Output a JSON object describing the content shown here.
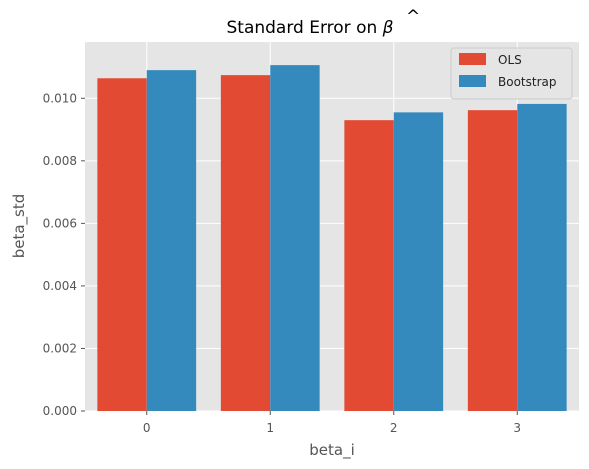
{
  "chart_data": {
    "type": "bar",
    "title_prefix": "Standard Error on ",
    "title_symbol": "β",
    "title_hat": "^",
    "xlabel": "beta_i",
    "ylabel": "beta_std",
    "categories": [
      "0",
      "1",
      "2",
      "3"
    ],
    "series": [
      {
        "name": "OLS",
        "color": "#E24A33",
        "values": [
          0.01064,
          0.01074,
          0.0093,
          0.00962
        ]
      },
      {
        "name": "Bootstrap",
        "color": "#348ABD",
        "values": [
          0.0109,
          0.01106,
          0.00955,
          0.00982
        ]
      }
    ],
    "ylim": [
      0,
      0.0118
    ],
    "yticks": [
      "0.000",
      "0.002",
      "0.004",
      "0.006",
      "0.008",
      "0.010"
    ],
    "grid": true,
    "legend_position": "top-right",
    "background": "#E5E5E5"
  }
}
